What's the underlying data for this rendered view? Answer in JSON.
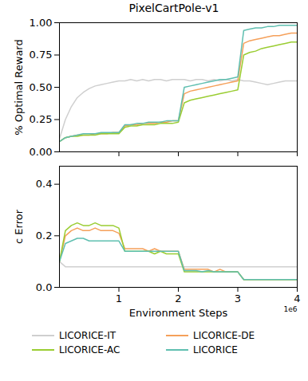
{
  "chart_data": [
    {
      "type": "line",
      "title": "PixelCartPole-v1",
      "y_label": "% Optimal Reward",
      "x": [
        0,
        0.1,
        0.2,
        0.3,
        0.4,
        0.5,
        0.6,
        0.7,
        0.8,
        0.9,
        1.0,
        1.1,
        1.2,
        1.3,
        1.4,
        1.5,
        1.6,
        1.7,
        1.8,
        1.9,
        2.0,
        2.1,
        2.2,
        2.3,
        2.4,
        2.5,
        2.6,
        2.7,
        2.8,
        2.9,
        3.0,
        3.1,
        3.2,
        3.3,
        3.4,
        3.5,
        3.6,
        3.7,
        3.8,
        3.9,
        4.0
      ],
      "xlim": [
        0,
        4
      ],
      "xticks": [
        1,
        2,
        3,
        4
      ],
      "ylim": [
        0,
        1
      ],
      "yticks": [
        {
          "value": 0,
          "label": "0.00"
        },
        {
          "value": 0.25,
          "label": "0.25"
        },
        {
          "value": 0.5,
          "label": "0.50"
        },
        {
          "value": 0.75,
          "label": "0.75"
        },
        {
          "value": 1,
          "label": "1.00"
        }
      ],
      "tick_labels": "y",
      "grid": false,
      "series": [
        {
          "name": "LICORICE-IT",
          "color": "#cfcfcf",
          "values": [
            0.1,
            0.25,
            0.35,
            0.42,
            0.46,
            0.49,
            0.51,
            0.52,
            0.53,
            0.54,
            0.55,
            0.55,
            0.56,
            0.55,
            0.56,
            0.55,
            0.56,
            0.56,
            0.55,
            0.56,
            0.56,
            0.56,
            0.55,
            0.56,
            0.56,
            0.55,
            0.56,
            0.55,
            0.56,
            0.55,
            0.56,
            0.55,
            0.55,
            0.54,
            0.53,
            0.52,
            0.53,
            0.54,
            0.55,
            0.55,
            0.55
          ]
        },
        {
          "name": "LICORICE-DE",
          "color": "#f5a05a",
          "values": [
            0.08,
            0.11,
            0.12,
            0.13,
            0.13,
            0.13,
            0.14,
            0.14,
            0.14,
            0.15,
            0.15,
            0.2,
            0.21,
            0.21,
            0.22,
            0.22,
            0.22,
            0.23,
            0.23,
            0.24,
            0.24,
            0.45,
            0.47,
            0.48,
            0.49,
            0.5,
            0.51,
            0.52,
            0.53,
            0.54,
            0.55,
            0.84,
            0.86,
            0.87,
            0.88,
            0.89,
            0.9,
            0.9,
            0.91,
            0.92,
            0.92
          ]
        },
        {
          "name": "LICORICE-AC",
          "color": "#9acd32",
          "values": [
            0.08,
            0.11,
            0.12,
            0.12,
            0.13,
            0.13,
            0.13,
            0.14,
            0.14,
            0.14,
            0.14,
            0.19,
            0.2,
            0.2,
            0.21,
            0.21,
            0.21,
            0.22,
            0.22,
            0.22,
            0.23,
            0.38,
            0.4,
            0.41,
            0.42,
            0.43,
            0.44,
            0.45,
            0.46,
            0.47,
            0.48,
            0.75,
            0.77,
            0.78,
            0.8,
            0.81,
            0.82,
            0.83,
            0.84,
            0.85,
            0.85
          ]
        },
        {
          "name": "LICORICE",
          "color": "#5fbfb0",
          "values": [
            0.08,
            0.11,
            0.12,
            0.13,
            0.14,
            0.14,
            0.14,
            0.15,
            0.15,
            0.15,
            0.15,
            0.21,
            0.21,
            0.22,
            0.22,
            0.23,
            0.23,
            0.23,
            0.24,
            0.24,
            0.24,
            0.5,
            0.51,
            0.52,
            0.53,
            0.54,
            0.55,
            0.56,
            0.56,
            0.57,
            0.58,
            0.94,
            0.95,
            0.96,
            0.96,
            0.97,
            0.97,
            0.98,
            0.98,
            0.98,
            0.98
          ]
        }
      ]
    },
    {
      "type": "line",
      "y_label": "c Error",
      "x_label": "Environment Steps",
      "annotations": [
        "1e6"
      ],
      "x": [
        0,
        0.1,
        0.2,
        0.3,
        0.4,
        0.5,
        0.6,
        0.7,
        0.8,
        0.9,
        1.0,
        1.1,
        1.2,
        1.3,
        1.4,
        1.5,
        1.6,
        1.7,
        1.8,
        1.9,
        2.0,
        2.1,
        2.2,
        2.3,
        2.4,
        2.5,
        2.6,
        2.7,
        2.8,
        2.9,
        3.0,
        3.1,
        3.2,
        3.3,
        3.4,
        3.5,
        3.6,
        3.7,
        3.8,
        3.9,
        4.0
      ],
      "xlim": [
        0,
        4
      ],
      "xticks": [
        1,
        2,
        3,
        4
      ],
      "ylim": [
        0,
        0.47
      ],
      "yticks": [
        {
          "value": 0,
          "label": "0.0"
        },
        {
          "value": 0.2,
          "label": "0.2"
        },
        {
          "value": 0.4,
          "label": "0.4"
        }
      ],
      "grid": false,
      "series": [
        {
          "name": "LICORICE-IT",
          "color": "#cfcfcf",
          "values": [
            0.1,
            0.08,
            0.08,
            0.08,
            0.08,
            0.08,
            0.08,
            0.08,
            0.08,
            0.08,
            0.08,
            0.08,
            0.08,
            0.08,
            0.08,
            0.08,
            0.08,
            0.08,
            0.08,
            0.08,
            0.08,
            0.08,
            0.08,
            0.08,
            0.08,
            0.08,
            0.08,
            0.08,
            0.08,
            0.08,
            0.08,
            0.08,
            0.08,
            0.08,
            0.08,
            0.08,
            0.08,
            0.08,
            0.08,
            0.08,
            0.08
          ]
        },
        {
          "name": "LICORICE-DE",
          "color": "#f5a05a",
          "values": [
            0.1,
            0.2,
            0.22,
            0.23,
            0.22,
            0.22,
            0.23,
            0.22,
            0.22,
            0.22,
            0.21,
            0.15,
            0.15,
            0.15,
            0.15,
            0.14,
            0.15,
            0.14,
            0.14,
            0.14,
            0.14,
            0.07,
            0.07,
            0.07,
            0.07,
            0.07,
            0.06,
            0.07,
            0.06,
            0.06,
            0.06,
            0.03,
            0.03,
            0.03,
            0.03,
            0.03,
            0.03,
            0.03,
            0.03,
            0.03,
            0.03
          ]
        },
        {
          "name": "LICORICE-AC",
          "color": "#9acd32",
          "values": [
            0.1,
            0.22,
            0.24,
            0.25,
            0.24,
            0.24,
            0.25,
            0.24,
            0.24,
            0.24,
            0.23,
            0.14,
            0.14,
            0.14,
            0.14,
            0.14,
            0.13,
            0.14,
            0.13,
            0.13,
            0.13,
            0.06,
            0.06,
            0.06,
            0.06,
            0.06,
            0.06,
            0.06,
            0.06,
            0.06,
            0.06,
            0.03,
            0.03,
            0.03,
            0.03,
            0.03,
            0.03,
            0.03,
            0.03,
            0.03,
            0.03
          ]
        },
        {
          "name": "LICORICE",
          "color": "#5fbfb0",
          "values": [
            0.1,
            0.17,
            0.18,
            0.19,
            0.19,
            0.18,
            0.18,
            0.18,
            0.18,
            0.18,
            0.18,
            0.14,
            0.14,
            0.14,
            0.14,
            0.14,
            0.14,
            0.14,
            0.14,
            0.14,
            0.14,
            0.065,
            0.065,
            0.065,
            0.06,
            0.065,
            0.06,
            0.06,
            0.06,
            0.06,
            0.06,
            0.03,
            0.03,
            0.03,
            0.03,
            0.03,
            0.03,
            0.03,
            0.03,
            0.03,
            0.03
          ]
        }
      ]
    }
  ]
}
